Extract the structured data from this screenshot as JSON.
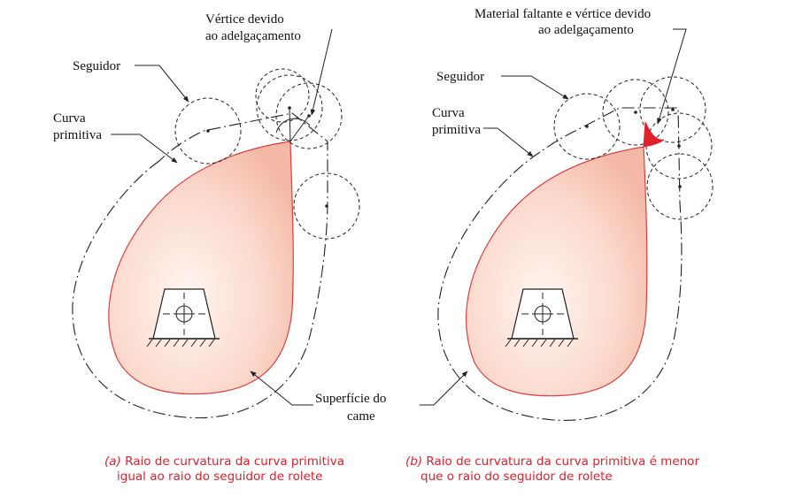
{
  "panel_a": {
    "label_vertex": [
      "Vértice devido",
      "ao adelgaçamento"
    ],
    "label_follower": "Seguidor",
    "label_pitch_curve": [
      "Curva",
      "primitiva"
    ],
    "label_cam_surface": [
      "Superfície do",
      "came"
    ],
    "caption_letter": "(a)",
    "caption_line1": "Raio de curvatura da curva primitiva",
    "caption_line2": "igual ao raio do seguidor de rolete"
  },
  "panel_b": {
    "label_missing": [
      "Material faltante e vértice devido",
      "ao adelgaçamento"
    ],
    "label_follower": "Seguidor",
    "label_pitch_curve": [
      "Curva",
      "primitiva"
    ],
    "caption_letter": "(b)",
    "caption_line1": "Raio de curvatura da curva primitiva é menor",
    "caption_line2": "que o raio do seguidor de rolete"
  },
  "colors": {
    "cam_stroke": "#d94040",
    "cam_fill_center": "#fff4ee",
    "cam_fill_edge": "#f7c3b3",
    "missing_material": "#e0202c",
    "caption_text": "#e0202c"
  }
}
